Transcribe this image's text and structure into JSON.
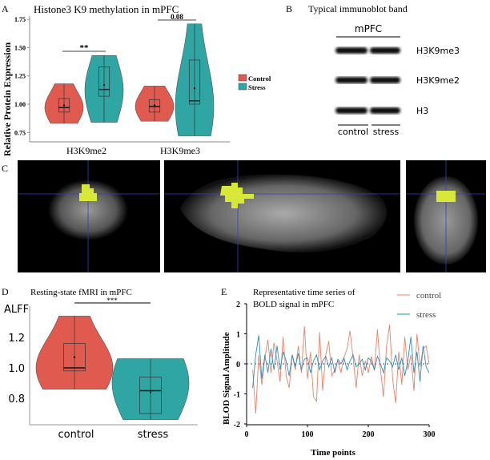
{
  "panels": {
    "A": {
      "label": "A",
      "title": "Histone3 K9 methylation in mPFC"
    },
    "B": {
      "label": "B",
      "title": "Typical immunoblot band",
      "region": "mPFC",
      "bands": [
        "H3K9me3",
        "H3K9me2",
        "H3"
      ],
      "lanes": [
        "control",
        "stress"
      ]
    },
    "C": {
      "label": "C"
    },
    "D": {
      "label": "D",
      "title": "Resting-state fMRI in mPFC"
    },
    "E": {
      "label": "E",
      "title_line1": "Representative time series of",
      "title_line2": "BOLD signal in mPFC"
    }
  },
  "colors": {
    "control": "#e05a4f",
    "stress": "#2fa6a4",
    "control_line": "#e8826b",
    "stress_line": "#2a8fc4",
    "cluster": "#d8e83a",
    "crosshair": "#3040c0"
  },
  "chart_data": [
    {
      "type": "violin",
      "title": "Histone3 K9 methylation in mPFC",
      "ylabel": "Relative Protein Expression",
      "xlabel": "",
      "ylim": [
        0.7,
        1.78
      ],
      "yticks": [
        "0.75",
        "1.00",
        "1.25",
        "1.50",
        "1.75"
      ],
      "categories": [
        "H3K9me2",
        "H3K9me3"
      ],
      "legend": {
        "position": "right",
        "entries": [
          "Control",
          "Stress"
        ]
      },
      "series": [
        {
          "name": "Control",
          "groups": [
            {
              "min": 0.83,
              "q1": 0.93,
              "median": 0.97,
              "q3": 1.05,
              "max": 1.18,
              "mean": 0.99,
              "mode": 0.97
            },
            {
              "min": 0.85,
              "q1": 0.93,
              "median": 0.98,
              "q3": 1.04,
              "max": 1.16,
              "mean": 0.99,
              "mode": 0.98
            }
          ]
        },
        {
          "name": "Stress",
          "groups": [
            {
              "min": 0.84,
              "q1": 1.07,
              "median": 1.13,
              "q3": 1.33,
              "max": 1.43,
              "mean": 1.17,
              "mode": 1.12
            },
            {
              "min": 0.72,
              "q1": 1.0,
              "median": 1.03,
              "q3": 1.39,
              "max": 1.71,
              "mean": 1.14,
              "mode": 0.98
            }
          ]
        }
      ],
      "annotations": [
        {
          "category": "H3K9me2",
          "text": "**"
        },
        {
          "category": "H3K9me3",
          "text": "0.08"
        }
      ]
    },
    {
      "type": "violin",
      "title": "Resting-state fMRI in mPFC",
      "ylabel": "ALFF",
      "ylim": [
        0.64,
        1.38
      ],
      "yticks": [
        "0.8",
        "1.0",
        "1.2"
      ],
      "categories": [
        "control",
        "stress"
      ],
      "groups": [
        {
          "name": "control",
          "min": 0.86,
          "q1": 0.98,
          "median": 1.0,
          "q3": 1.16,
          "max": 1.34,
          "mean": 1.07,
          "mode": 1.0
        },
        {
          "name": "stress",
          "min": 0.66,
          "q1": 0.7,
          "median": 0.85,
          "q3": 0.94,
          "max": 1.06,
          "mean": 0.84,
          "mode": 0.9
        }
      ],
      "annotations": [
        {
          "text": "***"
        }
      ]
    },
    {
      "type": "line",
      "title": "Representative time series of BOLD signal in mPFC",
      "xlabel": "Time points",
      "ylabel": "BLOD Signal Amplitude",
      "xlim": [
        0,
        300
      ],
      "ylim": [
        -2,
        2
      ],
      "xticks": [
        "0",
        "100",
        "200",
        "300"
      ],
      "yticks": [
        "-2",
        "-1",
        "0",
        "1",
        "2"
      ],
      "legend": {
        "position": "top-right",
        "entries": [
          "control",
          "stress"
        ]
      },
      "x_start": 10,
      "x_step": 5,
      "series": [
        {
          "name": "control",
          "values": [
            -0.2,
            -1.65,
            0.3,
            -0.7,
            0.2,
            0.8,
            -0.3,
            0.7,
            0.1,
            -0.6,
            0.9,
            -0.4,
            -0.8,
            0.3,
            -0.2,
            0.6,
            -0.3,
            1.25,
            -0.5,
            0.4,
            -1.1,
            -1.25,
            1.05,
            -0.9,
            0.3,
            0.75,
            -0.4,
            -0.2,
            0.1,
            -0.3,
            0.2,
            0.5,
            1.1,
            0.2,
            -0.8,
            0.3,
            -0.4,
            0.1,
            -0.3,
            0.25,
            -0.2,
            1.15,
            -0.2,
            -1.1,
            0.6,
            1.3,
            -0.5,
            -1.3,
            0.4,
            -0.7,
            0.9,
            -0.2,
            0.3,
            -0.9,
            1.0,
            -0.1,
            0.5,
            0.6,
            0.0
          ]
        },
        {
          "name": "stress",
          "values": [
            -0.8,
            0.3,
            0.95,
            -0.5,
            0.3,
            -0.3,
            0.5,
            -0.2,
            0.6,
            -0.2,
            0.4,
            0.1,
            -0.4,
            0.3,
            -0.1,
            0.35,
            -0.2,
            0.15,
            0.2,
            -0.3,
            0.1,
            0.3,
            -0.2,
            0.1,
            0.25,
            -0.1,
            0.2,
            -0.3,
            0.15,
            0.0,
            0.2,
            -0.2,
            0.1,
            0.3,
            -0.1,
            0.0,
            0.15,
            -0.2,
            0.2,
            0.1,
            -0.2,
            0.25,
            0.0,
            -0.3,
            0.2,
            0.1,
            -0.1,
            0.3,
            -0.2,
            0.2,
            -0.4,
            0.1,
            0.9,
            -0.3,
            0.4,
            -0.6,
            0.6,
            -0.1,
            -0.3
          ]
        }
      ]
    }
  ]
}
